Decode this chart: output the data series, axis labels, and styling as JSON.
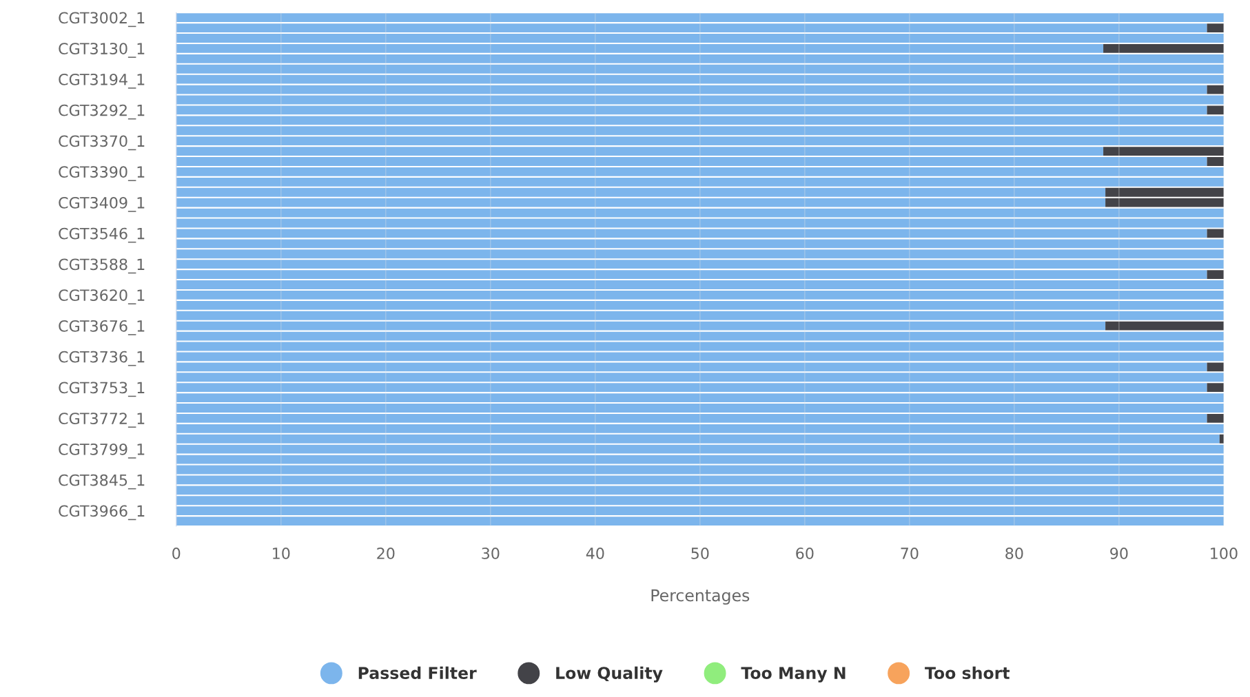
{
  "chart_data": {
    "type": "bar",
    "orientation": "horizontal",
    "stacked": true,
    "xlabel": "Percentages",
    "categories": [
      "CGT3002_1",
      null,
      null,
      "CGT3130_1",
      null,
      null,
      "CGT3194_1",
      null,
      null,
      "CGT3292_1",
      null,
      null,
      "CGT3370_1",
      null,
      null,
      "CGT3390_1",
      null,
      null,
      "CGT3409_1",
      null,
      null,
      "CGT3546_1",
      null,
      null,
      "CGT3588_1",
      null,
      null,
      "CGT3620_1",
      null,
      null,
      "CGT3676_1",
      null,
      null,
      "CGT3736_1",
      null,
      null,
      "CGT3753_1",
      null,
      null,
      "CGT3772_1",
      null,
      null,
      "CGT3799_1",
      null,
      null,
      "CGT3845_1",
      null,
      null,
      "CGT3966_1",
      null
    ],
    "series": [
      {
        "name": "Passed Filter",
        "color": "#7cb5ec",
        "values": [
          100,
          98.4,
          100,
          88.5,
          100,
          100,
          100,
          98.4,
          100,
          98.4,
          100,
          100,
          100,
          88.5,
          98.4,
          100,
          100,
          88.7,
          88.7,
          100,
          100,
          98.4,
          100,
          100,
          100,
          98.4,
          100,
          100,
          100,
          100,
          88.7,
          100,
          100,
          100,
          98.4,
          100,
          98.4,
          100,
          100,
          98.4,
          100,
          99.6,
          100,
          100,
          100,
          100,
          100,
          100,
          100,
          100
        ]
      },
      {
        "name": "Low Quality",
        "color": "#434348",
        "values": [
          0,
          1.6,
          0,
          11.5,
          0,
          0,
          0,
          1.6,
          0,
          1.6,
          0,
          0,
          0,
          11.5,
          1.6,
          0,
          0,
          11.3,
          11.3,
          0,
          0,
          1.6,
          0,
          0,
          0,
          1.6,
          0,
          0,
          0,
          0,
          11.3,
          0,
          0,
          0,
          1.6,
          0,
          1.6,
          0,
          0,
          1.6,
          0,
          0.4,
          0,
          0,
          0,
          0,
          0,
          0,
          0,
          0
        ]
      },
      {
        "name": "Too Many N",
        "color": "#90ed7d",
        "values": [
          0,
          0,
          0,
          0,
          0,
          0,
          0,
          0,
          0,
          0,
          0,
          0,
          0,
          0,
          0,
          0,
          0,
          0,
          0,
          0,
          0,
          0,
          0,
          0,
          0,
          0,
          0,
          0,
          0,
          0,
          0,
          0,
          0,
          0,
          0,
          0,
          0,
          0,
          0,
          0,
          0,
          0,
          0,
          0,
          0,
          0,
          0,
          0,
          0,
          0
        ]
      },
      {
        "name": "Too short",
        "color": "#f7a35c",
        "values": [
          0,
          0,
          0,
          0,
          0,
          0,
          0,
          0,
          0,
          0,
          0,
          0,
          0,
          0,
          0,
          0,
          0,
          0,
          0,
          0,
          0,
          0,
          0,
          0,
          0,
          0,
          0,
          0,
          0,
          0,
          0,
          0,
          0,
          0,
          0,
          0,
          0,
          0,
          0,
          0,
          0,
          0,
          0,
          0,
          0,
          0,
          0,
          0,
          0,
          0
        ]
      }
    ],
    "xlim": [
      0,
      100
    ],
    "xticks": [
      0,
      10,
      20,
      30,
      40,
      50,
      60,
      70,
      80,
      90,
      100
    ],
    "grid": "x",
    "legend": "bottom",
    "marker": "circle"
  }
}
